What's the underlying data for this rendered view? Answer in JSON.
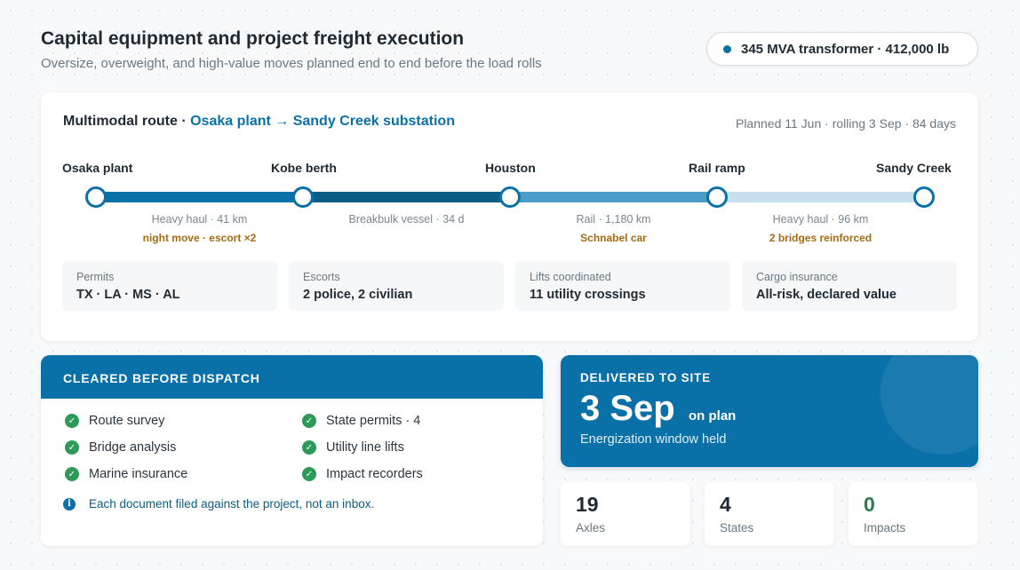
{
  "header": {
    "title": "Capital equipment and project freight execution",
    "subtitle": "Oversize, overweight, and high-value moves planned end to end before the load rolls",
    "cargo": "345 MVA transformer · 412,000 lb"
  },
  "route": {
    "prefix": "Multimodal route · ",
    "name": "Osaka plant → Sandy Creek substation",
    "plan": "Planned 11 Jun · rolling 3 Sep · 84 days",
    "stops": [
      "Osaka plant",
      "Kobe berth",
      "Houston",
      "Rail ramp",
      "Sandy Creek"
    ],
    "segments": [
      {
        "label": "Heavy haul · 41 km",
        "note": "night move · escort ×2"
      },
      {
        "label": "Breakbulk vessel · 34 d",
        "note": ""
      },
      {
        "label": "Rail · 1,180 km",
        "note": "Schnabel car"
      },
      {
        "label": "Heavy haul · 96 km",
        "note": "2 bridges reinforced"
      }
    ],
    "stats": [
      {
        "label": "Permits",
        "value": "TX · LA · MS · AL"
      },
      {
        "label": "Escorts",
        "value": "2 police, 2 civilian"
      },
      {
        "label": "Lifts coordinated",
        "value": "11 utility crossings"
      },
      {
        "label": "Cargo insurance",
        "value": "All-risk, declared value"
      }
    ]
  },
  "cleared": {
    "title": "CLEARED BEFORE DISPATCH",
    "items": [
      "Route survey",
      "State permits · 4",
      "Bridge analysis",
      "Utility line lifts",
      "Marine insurance",
      "Impact recorders"
    ],
    "info": "Each document filed against the project, not an inbox."
  },
  "delivered": {
    "label": "DELIVERED TO SITE",
    "date": "3 Sep",
    "status": "on plan",
    "sub": "Energization window held"
  },
  "metrics": [
    {
      "value": "19",
      "label": "Axles"
    },
    {
      "value": "4",
      "label": "States"
    },
    {
      "value": "0",
      "label": "Impacts"
    }
  ]
}
